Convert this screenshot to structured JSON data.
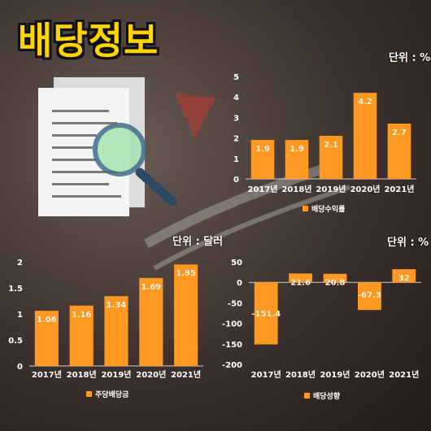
{
  "title": "배당정보",
  "bar_color": "#ff9922",
  "chart_data": [
    {
      "id": "yield",
      "type": "bar",
      "unit": "단위 : %",
      "categories": [
        "2017년",
        "2018년",
        "2019년",
        "2020년",
        "2021년"
      ],
      "series": [
        {
          "name": "배당수익률",
          "values": [
            1.9,
            1.9,
            2.1,
            4.2,
            2.7
          ]
        }
      ],
      "data_labels": [
        "1.9",
        "1.9",
        "2.1",
        "4.2",
        "2.7"
      ],
      "ylim": [
        0,
        5
      ],
      "yticks": [
        0,
        1,
        2,
        3,
        4,
        5
      ],
      "grid": false,
      "legend": "bottom"
    },
    {
      "id": "dps",
      "type": "bar",
      "unit": "단위 : 달러",
      "categories": [
        "2017년",
        "2018년",
        "2019년",
        "2020년",
        "2021년"
      ],
      "series": [
        {
          "name": "주당배당금",
          "values": [
            1.06,
            1.16,
            1.34,
            1.69,
            1.95
          ]
        }
      ],
      "data_labels": [
        "1.06",
        "1.16",
        "1.34",
        "1.69",
        "1.95"
      ],
      "ylim": [
        0,
        2
      ],
      "yticks": [
        0,
        0.5,
        1,
        1.5,
        2
      ],
      "grid": false,
      "legend": "bottom"
    },
    {
      "id": "growth",
      "type": "bar",
      "unit": "단위 : %",
      "categories": [
        "2017년",
        "2018년",
        "2019년",
        "2020년",
        "2021년"
      ],
      "series": [
        {
          "name": "배당성향",
          "values": [
            -151.4,
            21.6,
            20.8,
            -67.3,
            32
          ]
        }
      ],
      "data_labels": [
        "-151.4",
        "21.6",
        "20.8",
        "-67.3",
        "32"
      ],
      "ylim": [
        -200,
        50
      ],
      "yticks": [
        50,
        0,
        -50,
        -100,
        -150,
        -200
      ],
      "grid": false,
      "legend": "bottom"
    }
  ]
}
